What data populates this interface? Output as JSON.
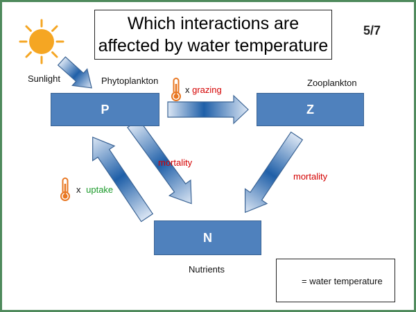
{
  "title": "Which interactions are affected by water temperature",
  "page_indicator": "5/7",
  "sunlight_label": "Sunlight",
  "nodes": {
    "p": {
      "letter": "P",
      "caption": "Phytoplankton"
    },
    "z": {
      "letter": "Z",
      "caption": "Zooplankton"
    },
    "n": {
      "letter": "N",
      "caption": "Nutrients"
    }
  },
  "interactions": {
    "grazing": {
      "prefix": "x",
      "label": "grazing"
    },
    "uptake": {
      "prefix": "x",
      "label": "uptake"
    },
    "phyto_mortality": {
      "label": "mortality"
    },
    "zoo_mortality": {
      "label": "mortality"
    }
  },
  "legend": {
    "text": "= water temperature"
  },
  "icons": [
    "sun-icon",
    "thermometer-icon"
  ],
  "colors": {
    "frame": "#4f8a5c",
    "node_fill": "#4f81bd",
    "arrow_dark": "#1f5fa8",
    "arrow_light": "#dbe6f4",
    "red_label": "#d40000",
    "green_label": "#1b9a2a",
    "sun": "#f5a623",
    "thermometer": "#e87722"
  }
}
